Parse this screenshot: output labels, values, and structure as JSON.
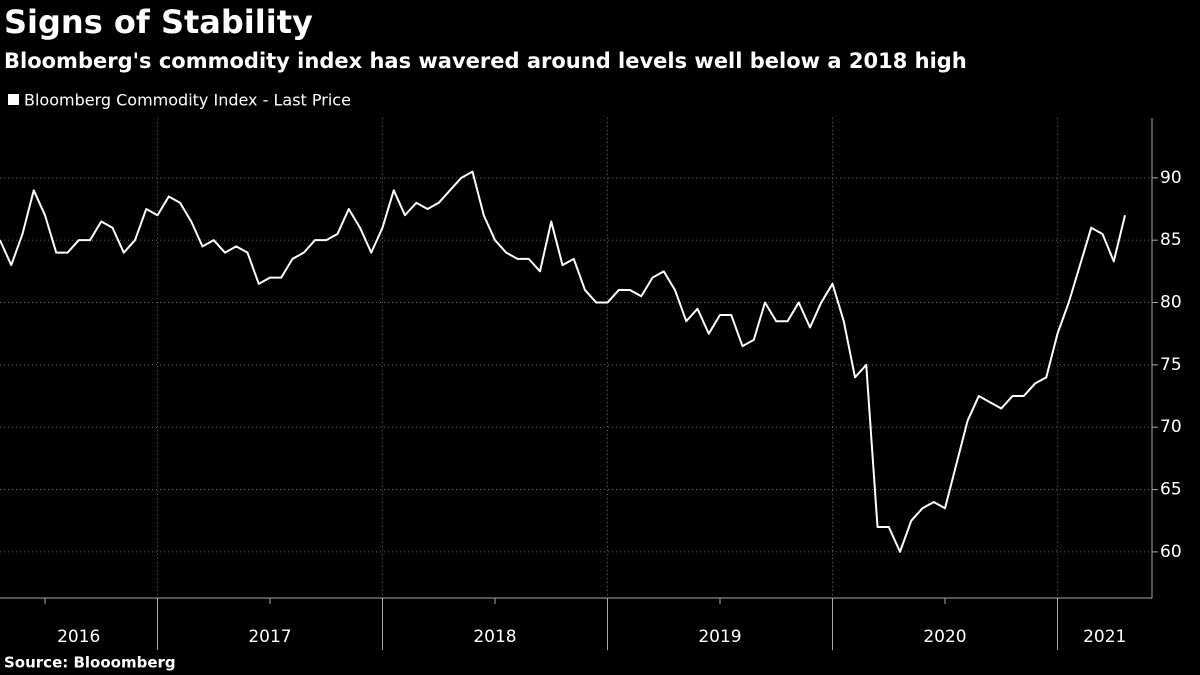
{
  "chart_data": {
    "type": "line",
    "title": "Signs of Stability",
    "subtitle": "Bloomberg's commodity index has wavered around levels well below a 2018 high",
    "source": "Source: Blooomberg",
    "x": [
      2016.3,
      2016.35,
      2016.4,
      2016.45,
      2016.5,
      2016.55,
      2016.6,
      2016.65,
      2016.7,
      2016.75,
      2016.8,
      2016.85,
      2016.9,
      2016.95,
      2017.0,
      2017.05,
      2017.1,
      2017.15,
      2017.2,
      2017.25,
      2017.3,
      2017.35,
      2017.4,
      2017.45,
      2017.5,
      2017.55,
      2017.6,
      2017.65,
      2017.7,
      2017.75,
      2017.8,
      2017.85,
      2017.9,
      2017.95,
      2018.0,
      2018.05,
      2018.1,
      2018.15,
      2018.2,
      2018.25,
      2018.3,
      2018.35,
      2018.4,
      2018.45,
      2018.5,
      2018.55,
      2018.6,
      2018.65,
      2018.7,
      2018.75,
      2018.8,
      2018.85,
      2018.9,
      2018.95,
      2019.0,
      2019.05,
      2019.1,
      2019.15,
      2019.2,
      2019.25,
      2019.3,
      2019.35,
      2019.4,
      2019.45,
      2019.5,
      2019.55,
      2019.6,
      2019.65,
      2019.7,
      2019.75,
      2019.8,
      2019.85,
      2019.9,
      2019.95,
      2020.0,
      2020.05,
      2020.1,
      2020.15,
      2020.2,
      2020.25,
      2020.3,
      2020.35,
      2020.4,
      2020.45,
      2020.5,
      2020.55,
      2020.6,
      2020.65,
      2020.7,
      2020.75,
      2020.8,
      2020.85,
      2020.9,
      2020.95,
      2021.0,
      2021.05,
      2021.1,
      2021.15,
      2021.2,
      2021.25,
      2021.3
    ],
    "series": [
      {
        "name": "Bloomberg Commodity Index - Last Price",
        "color": "#ffffff",
        "values": [
          85,
          83,
          85.5,
          89,
          87,
          84,
          84,
          85,
          85,
          86.5,
          86,
          84,
          85,
          87.5,
          87,
          88.5,
          88,
          86.5,
          84.5,
          85,
          84,
          84.5,
          84,
          81.5,
          82,
          82,
          83.5,
          84,
          85,
          85,
          85.5,
          87.5,
          86,
          84,
          86,
          89,
          87,
          88,
          87.5,
          88,
          89,
          90,
          90.5,
          87,
          85,
          84,
          83.5,
          83.5,
          82.5,
          86.5,
          83,
          83.5,
          81,
          80,
          80,
          81,
          81,
          80.5,
          82,
          82.5,
          81,
          78.5,
          79.5,
          77.5,
          79,
          79,
          76.5,
          77,
          80,
          78.5,
          78.5,
          80,
          78,
          80,
          81.5,
          78.5,
          74,
          75,
          62,
          62,
          60,
          62.5,
          63.5,
          64,
          63.5,
          67,
          70.5,
          72.5,
          72,
          71.5,
          72.5,
          72.5,
          73.5,
          74,
          77.5,
          80,
          83,
          86,
          85.5,
          83.3,
          87
        ]
      }
    ],
    "xlim": [
      2016.3,
      2021.42
    ],
    "xticks": [
      2016,
      2017,
      2018,
      2019,
      2020,
      2021
    ],
    "ylim": [
      56.3,
      94.8
    ],
    "yticks": [
      60,
      65,
      70,
      75,
      80,
      85,
      90
    ],
    "grid": true
  }
}
